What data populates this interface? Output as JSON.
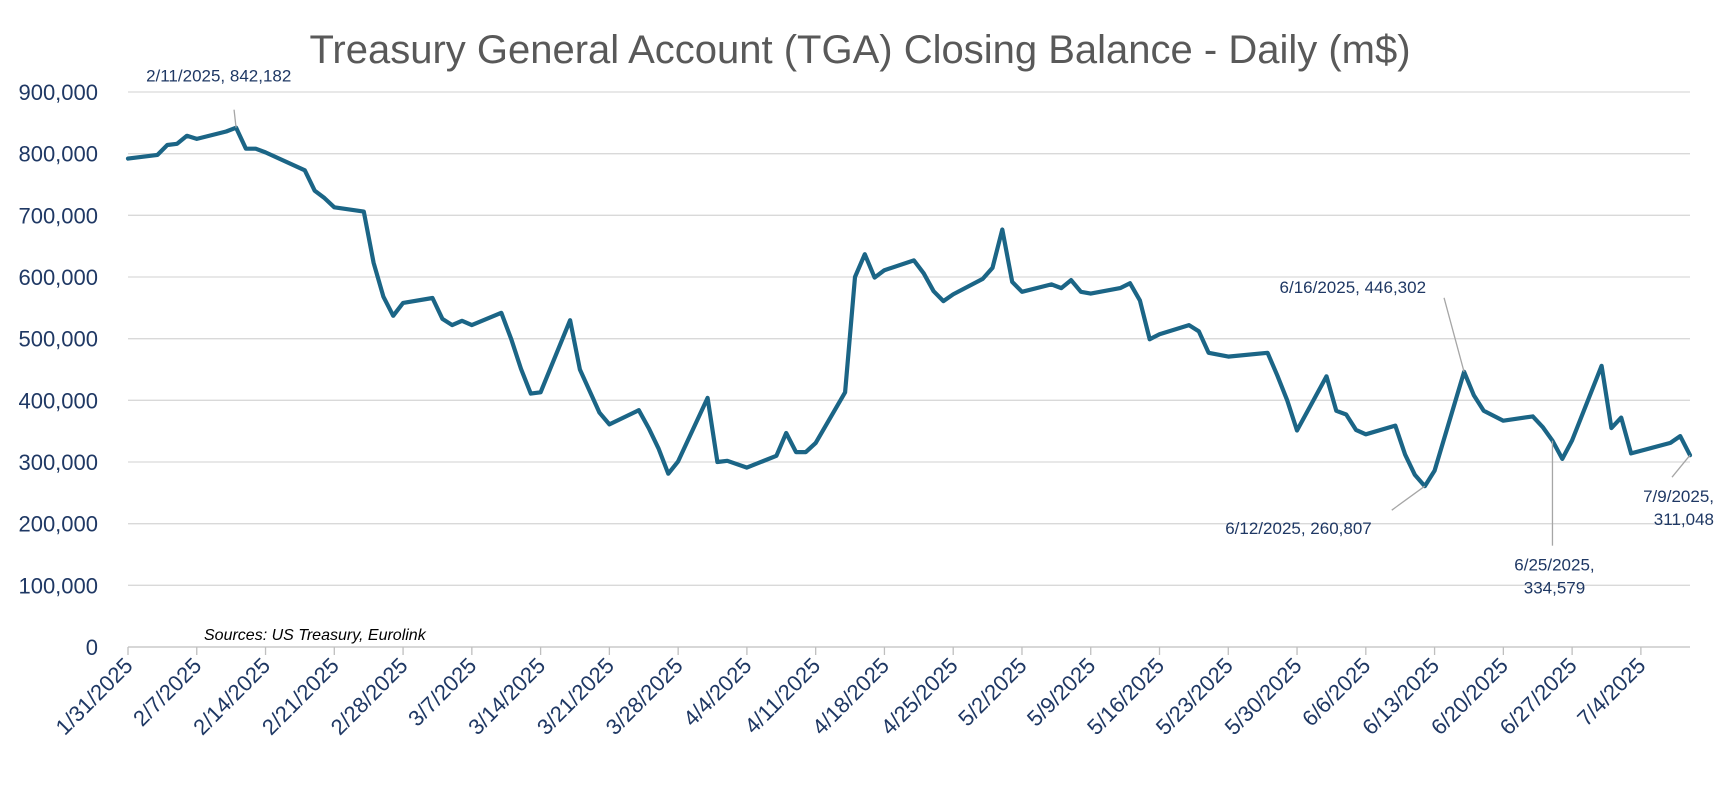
{
  "chart_data": {
    "type": "line",
    "title": "Treasury General Account (TGA) Closing Balance - Daily  (m$)",
    "source": "Sources: US Treasury, Eurolink",
    "xlabel": "",
    "ylabel": "",
    "ylim": [
      0,
      900000
    ],
    "y_ticks": [
      0,
      100000,
      200000,
      300000,
      400000,
      500000,
      600000,
      700000,
      800000,
      900000
    ],
    "y_tick_labels": [
      "0",
      "100,000",
      "200,000",
      "300,000",
      "400,000",
      "500,000",
      "600,000",
      "700,000",
      "800,000",
      "900,000"
    ],
    "x_start": "2025-01-31",
    "x_end": "2025-07-09",
    "x_tick_labels": [
      "1/31/2025",
      "2/7/2025",
      "2/14/2025",
      "2/21/2025",
      "2/28/2025",
      "3/7/2025",
      "3/14/2025",
      "3/21/2025",
      "3/28/2025",
      "4/4/2025",
      "4/11/2025",
      "4/18/2025",
      "4/25/2025",
      "5/2/2025",
      "5/9/2025",
      "5/16/2025",
      "5/23/2025",
      "5/30/2025",
      "6/6/2025",
      "6/13/2025",
      "6/20/2025",
      "6/27/2025",
      "7/4/2025"
    ],
    "grid": true,
    "color": "#1B6586",
    "series": [
      {
        "name": "TGA Closing Balance",
        "points": [
          [
            "2025-01-31",
            792000
          ],
          [
            "2025-02-03",
            798000
          ],
          [
            "2025-02-04",
            814000
          ],
          [
            "2025-02-05",
            816000
          ],
          [
            "2025-02-06",
            829000
          ],
          [
            "2025-02-07",
            824000
          ],
          [
            "2025-02-10",
            836000
          ],
          [
            "2025-02-11",
            842182
          ],
          [
            "2025-02-12",
            808000
          ],
          [
            "2025-02-13",
            808000
          ],
          [
            "2025-02-14",
            802000
          ],
          [
            "2025-02-18",
            773000
          ],
          [
            "2025-02-19",
            740000
          ],
          [
            "2025-02-20",
            728000
          ],
          [
            "2025-02-21",
            713000
          ],
          [
            "2025-02-24",
            706000
          ],
          [
            "2025-02-25",
            623000
          ],
          [
            "2025-02-26",
            568000
          ],
          [
            "2025-02-27",
            537000
          ],
          [
            "2025-02-28",
            558000
          ],
          [
            "2025-03-03",
            566000
          ],
          [
            "2025-03-04",
            532000
          ],
          [
            "2025-03-05",
            522000
          ],
          [
            "2025-03-06",
            529000
          ],
          [
            "2025-03-07",
            522000
          ],
          [
            "2025-03-10",
            542000
          ],
          [
            "2025-03-11",
            500000
          ],
          [
            "2025-03-12",
            451000
          ],
          [
            "2025-03-13",
            411000
          ],
          [
            "2025-03-14",
            413000
          ],
          [
            "2025-03-17",
            530000
          ],
          [
            "2025-03-18",
            450000
          ],
          [
            "2025-03-19",
            415000
          ],
          [
            "2025-03-20",
            380000
          ],
          [
            "2025-03-21",
            361000
          ],
          [
            "2025-03-24",
            384000
          ],
          [
            "2025-03-25",
            355000
          ],
          [
            "2025-03-26",
            322000
          ],
          [
            "2025-03-27",
            281000
          ],
          [
            "2025-03-28",
            301000
          ],
          [
            "2025-03-31",
            404000
          ],
          [
            "2025-04-01",
            300000
          ],
          [
            "2025-04-02",
            302000
          ],
          [
            "2025-04-04",
            291000
          ],
          [
            "2025-04-07",
            310000
          ],
          [
            "2025-04-08",
            347000
          ],
          [
            "2025-04-09",
            316000
          ],
          [
            "2025-04-10",
            316000
          ],
          [
            "2025-04-11",
            331000
          ],
          [
            "2025-04-14",
            413000
          ],
          [
            "2025-04-15",
            600000
          ],
          [
            "2025-04-16",
            637000
          ],
          [
            "2025-04-17",
            599000
          ],
          [
            "2025-04-18",
            611000
          ],
          [
            "2025-04-21",
            627000
          ],
          [
            "2025-04-22",
            606000
          ],
          [
            "2025-04-23",
            577000
          ],
          [
            "2025-04-24",
            561000
          ],
          [
            "2025-04-25",
            572000
          ],
          [
            "2025-04-28",
            597000
          ],
          [
            "2025-04-29",
            615000
          ],
          [
            "2025-04-30",
            677000
          ],
          [
            "2025-05-01",
            592000
          ],
          [
            "2025-05-02",
            576000
          ],
          [
            "2025-05-05",
            588000
          ],
          [
            "2025-05-06",
            582000
          ],
          [
            "2025-05-07",
            595000
          ],
          [
            "2025-05-08",
            576000
          ],
          [
            "2025-05-09",
            573000
          ],
          [
            "2025-05-12",
            582000
          ],
          [
            "2025-05-13",
            590000
          ],
          [
            "2025-05-14",
            562000
          ],
          [
            "2025-05-15",
            499000
          ],
          [
            "2025-05-16",
            507000
          ],
          [
            "2025-05-19",
            522000
          ],
          [
            "2025-05-20",
            512000
          ],
          [
            "2025-05-21",
            477000
          ],
          [
            "2025-05-23",
            471000
          ],
          [
            "2025-05-27",
            477000
          ],
          [
            "2025-05-28",
            440000
          ],
          [
            "2025-05-29",
            400000
          ],
          [
            "2025-05-30",
            351000
          ],
          [
            "2025-06-02",
            439000
          ],
          [
            "2025-06-03",
            383000
          ],
          [
            "2025-06-04",
            377000
          ],
          [
            "2025-06-05",
            352000
          ],
          [
            "2025-06-06",
            345000
          ],
          [
            "2025-06-09",
            359000
          ],
          [
            "2025-06-10",
            312000
          ],
          [
            "2025-06-11",
            279000
          ],
          [
            "2025-06-12",
            260807
          ],
          [
            "2025-06-13",
            286000
          ],
          [
            "2025-06-16",
            446302
          ],
          [
            "2025-06-17",
            408000
          ],
          [
            "2025-06-18",
            383000
          ],
          [
            "2025-06-20",
            367000
          ],
          [
            "2025-06-23",
            374000
          ],
          [
            "2025-06-24",
            357000
          ],
          [
            "2025-06-25",
            334579
          ],
          [
            "2025-06-26",
            305000
          ],
          [
            "2025-06-27",
            335000
          ],
          [
            "2025-06-30",
            456000
          ],
          [
            "2025-07-01",
            355000
          ],
          [
            "2025-07-02",
            372000
          ],
          [
            "2025-07-03",
            314000
          ],
          [
            "2025-07-07",
            331000
          ],
          [
            "2025-07-08",
            342000
          ],
          [
            "2025-07-09",
            311048
          ]
        ]
      }
    ],
    "annotations": [
      {
        "date": "2025-02-11",
        "value": 842182,
        "lines": [
          "2/11/2025,  842,182"
        ],
        "placement": "above"
      },
      {
        "date": "2025-06-16",
        "value": 446302,
        "lines": [
          "6/16/2025,  446,302"
        ],
        "placement": "upper-left"
      },
      {
        "date": "2025-06-12",
        "value": 260807,
        "lines": [
          "6/12/2025,  260,807"
        ],
        "placement": "lower-left"
      },
      {
        "date": "2025-06-25",
        "value": 334579,
        "lines": [
          "6/25/2025,",
          "334,579"
        ],
        "placement": "below"
      },
      {
        "date": "2025-07-09",
        "value": 311048,
        "lines": [
          "7/9/2025,",
          "311,048"
        ],
        "placement": "lower-left"
      }
    ]
  }
}
